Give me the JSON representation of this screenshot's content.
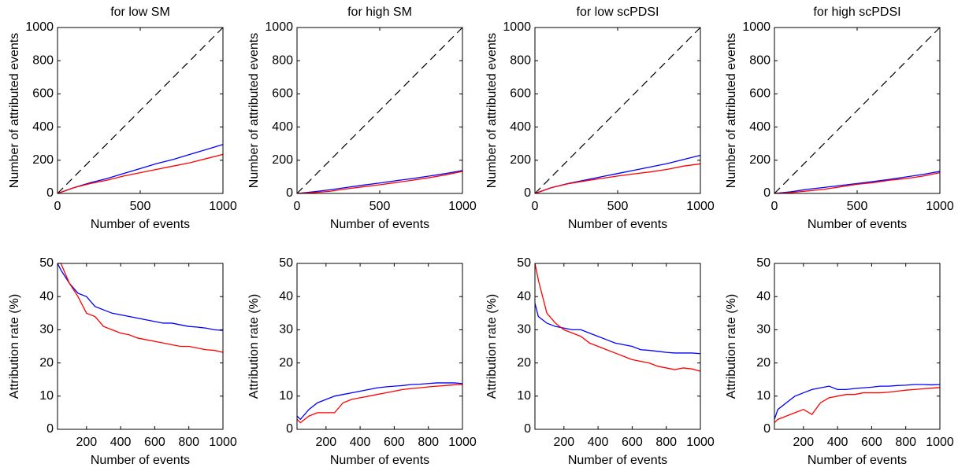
{
  "chart_data": [
    {
      "type": "line",
      "title": "for low SM",
      "xlabel": "Number of events",
      "ylabel": "Number of attributed events",
      "x": [
        0,
        100,
        200,
        300,
        400,
        500,
        600,
        700,
        800,
        900,
        1000
      ],
      "series": [
        {
          "color": "#000000",
          "dash": true,
          "values": [
            0,
            100,
            200,
            300,
            400,
            500,
            600,
            700,
            800,
            900,
            1000
          ]
        },
        {
          "color": "#0000ff",
          "values": [
            0,
            35,
            65,
            90,
            120,
            150,
            180,
            205,
            235,
            265,
            295
          ]
        },
        {
          "color": "#ff0000",
          "values": [
            0,
            35,
            60,
            80,
            105,
            125,
            145,
            165,
            185,
            210,
            235
          ]
        }
      ],
      "xlim": [
        0,
        1000
      ],
      "ylim": [
        0,
        1000
      ],
      "xticks": [
        0,
        500,
        1000
      ],
      "yticks": [
        0,
        200,
        400,
        600,
        800,
        1000
      ]
    },
    {
      "type": "line",
      "title": "for high SM",
      "xlabel": "Number of events",
      "ylabel": "Number of attributed events",
      "x": [
        0,
        100,
        200,
        300,
        400,
        500,
        600,
        700,
        800,
        900,
        1000
      ],
      "series": [
        {
          "color": "#000000",
          "dash": true,
          "values": [
            0,
            100,
            200,
            300,
            400,
            500,
            600,
            700,
            800,
            900,
            1000
          ]
        },
        {
          "color": "#0000ff",
          "values": [
            0,
            10,
            22,
            36,
            50,
            63,
            77,
            90,
            105,
            120,
            138
          ]
        },
        {
          "color": "#ff0000",
          "values": [
            0,
            5,
            13,
            28,
            40,
            52,
            66,
            80,
            95,
            112,
            133
          ]
        }
      ],
      "xlim": [
        0,
        1000
      ],
      "ylim": [
        0,
        1000
      ],
      "xticks": [
        0,
        500,
        1000
      ],
      "yticks": [
        0,
        200,
        400,
        600,
        800,
        1000
      ]
    },
    {
      "type": "line",
      "title": "for low scPDSI",
      "xlabel": "Number of events",
      "ylabel": "Number of attributed events",
      "x": [
        0,
        100,
        200,
        300,
        400,
        500,
        600,
        700,
        800,
        900,
        1000
      ],
      "series": [
        {
          "color": "#000000",
          "dash": true,
          "values": [
            0,
            100,
            200,
            300,
            400,
            500,
            600,
            700,
            800,
            900,
            1000
          ]
        },
        {
          "color": "#0000ff",
          "values": [
            0,
            35,
            60,
            80,
            100,
            120,
            140,
            160,
            180,
            205,
            230
          ]
        },
        {
          "color": "#ff0000",
          "values": [
            0,
            35,
            58,
            75,
            90,
            105,
            118,
            130,
            145,
            165,
            178
          ]
        }
      ],
      "xlim": [
        0,
        1000
      ],
      "ylim": [
        0,
        1000
      ],
      "xticks": [
        0,
        500,
        1000
      ],
      "yticks": [
        0,
        200,
        400,
        600,
        800,
        1000
      ]
    },
    {
      "type": "line",
      "title": "for high scPDSI",
      "xlabel": "Number of events",
      "ylabel": "Number of attributed events",
      "x": [
        0,
        100,
        200,
        300,
        400,
        500,
        600,
        700,
        800,
        900,
        1000
      ],
      "series": [
        {
          "color": "#000000",
          "dash": true,
          "values": [
            0,
            100,
            200,
            300,
            400,
            500,
            600,
            700,
            800,
            900,
            1000
          ]
        },
        {
          "color": "#0000ff",
          "values": [
            0,
            10,
            25,
            36,
            48,
            60,
            72,
            85,
            100,
            115,
            133
          ]
        },
        {
          "color": "#ff0000",
          "values": [
            0,
            5,
            15,
            25,
            40,
            55,
            65,
            80,
            90,
            105,
            125
          ]
        }
      ],
      "xlim": [
        0,
        1000
      ],
      "ylim": [
        0,
        1000
      ],
      "xticks": [
        0,
        500,
        1000
      ],
      "yticks": [
        0,
        200,
        400,
        600,
        800,
        1000
      ]
    },
    {
      "type": "line",
      "xlabel": "Number of events",
      "ylabel": "Attribution rate (%)",
      "x": [
        30,
        50,
        100,
        150,
        200,
        250,
        300,
        350,
        400,
        450,
        500,
        550,
        600,
        650,
        700,
        750,
        800,
        850,
        900,
        950,
        1000
      ],
      "series": [
        {
          "color": "#0000ff",
          "values": [
            50,
            48,
            44,
            41,
            40,
            37,
            36,
            35,
            34.5,
            34,
            33.5,
            33,
            32.5,
            32,
            32,
            31.5,
            31,
            30.8,
            30.5,
            30,
            29.8
          ]
        },
        {
          "color": "#ff0000",
          "values": [
            50,
            50,
            44,
            40,
            35,
            34,
            31,
            30,
            29,
            28.5,
            27.5,
            27,
            26.5,
            26,
            25.5,
            25,
            25,
            24.5,
            24,
            23.8,
            23.2
          ]
        }
      ],
      "xlim": [
        30,
        1000
      ],
      "ylim": [
        0,
        50
      ],
      "xticks": [
        200,
        400,
        600,
        800,
        1000
      ],
      "yticks": [
        0,
        10,
        20,
        30,
        40,
        50
      ]
    },
    {
      "type": "line",
      "xlabel": "Number of events",
      "ylabel": "Attribution rate (%)",
      "x": [
        30,
        50,
        100,
        150,
        200,
        250,
        300,
        350,
        400,
        450,
        500,
        550,
        600,
        650,
        700,
        750,
        800,
        850,
        900,
        950,
        1000
      ],
      "series": [
        {
          "color": "#0000ff",
          "values": [
            4,
            3,
            6,
            8,
            9,
            10,
            10.5,
            11,
            11.5,
            12,
            12.5,
            12.8,
            13,
            13.2,
            13.5,
            13.6,
            13.8,
            14,
            14,
            14,
            13.8
          ]
        },
        {
          "color": "#ff0000",
          "values": [
            3,
            2,
            4,
            5,
            5,
            5,
            8,
            9,
            9.5,
            10,
            10.5,
            11,
            11.5,
            12,
            12.3,
            12.5,
            12.8,
            13,
            13.2,
            13.4,
            13.5
          ]
        }
      ],
      "xlim": [
        30,
        1000
      ],
      "ylim": [
        0,
        50
      ],
      "xticks": [
        200,
        400,
        600,
        800,
        1000
      ],
      "yticks": [
        0,
        10,
        20,
        30,
        40,
        50
      ]
    },
    {
      "type": "line",
      "xlabel": "Number of events",
      "ylabel": "Attribution rate (%)",
      "x": [
        30,
        50,
        100,
        150,
        200,
        250,
        300,
        350,
        400,
        450,
        500,
        550,
        600,
        650,
        700,
        750,
        800,
        850,
        900,
        950,
        1000
      ],
      "series": [
        {
          "color": "#0000ff",
          "values": [
            38,
            34,
            32,
            31,
            30.5,
            30,
            30,
            29,
            28,
            27,
            26,
            25.5,
            25,
            24,
            23.8,
            23.5,
            23.2,
            23,
            23,
            23,
            22.8
          ]
        },
        {
          "color": "#ff0000",
          "values": [
            50,
            45,
            35,
            32,
            30,
            29,
            28,
            26,
            25,
            24,
            23,
            22,
            21,
            20.5,
            20,
            19,
            18.5,
            18,
            18.5,
            18.2,
            17.5
          ]
        }
      ],
      "xlim": [
        30,
        1000
      ],
      "ylim": [
        0,
        50
      ],
      "xticks": [
        200,
        400,
        600,
        800,
        1000
      ],
      "yticks": [
        0,
        10,
        20,
        30,
        40,
        50
      ]
    },
    {
      "type": "line",
      "xlabel": "Number of events",
      "ylabel": "Attribution rate (%)",
      "x": [
        30,
        50,
        100,
        150,
        200,
        250,
        300,
        350,
        400,
        450,
        500,
        550,
        600,
        650,
        700,
        750,
        800,
        850,
        900,
        950,
        1000
      ],
      "series": [
        {
          "color": "#0000ff",
          "values": [
            3,
            6,
            8,
            10,
            11,
            12,
            12.5,
            13,
            12,
            12,
            12.3,
            12.5,
            12.7,
            13,
            13,
            13.2,
            13.3,
            13.5,
            13.5,
            13.4,
            13.5
          ]
        },
        {
          "color": "#ff0000",
          "values": [
            2,
            3,
            4,
            5,
            6,
            4.5,
            8,
            9.5,
            10,
            10.5,
            10.5,
            11,
            11,
            11,
            11.2,
            11.5,
            11.8,
            12,
            12.2,
            12.4,
            12.6
          ]
        }
      ],
      "xlim": [
        30,
        1000
      ],
      "ylim": [
        0,
        50
      ],
      "xticks": [
        200,
        400,
        600,
        800,
        1000
      ],
      "yticks": [
        0,
        10,
        20,
        30,
        40,
        50
      ]
    }
  ]
}
